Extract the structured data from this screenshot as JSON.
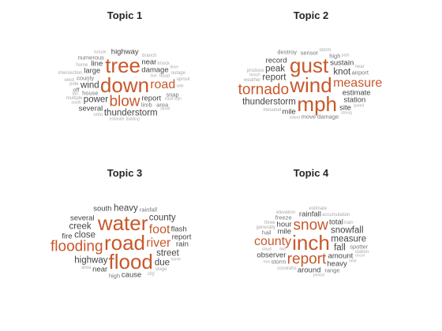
{
  "colors": {
    "title": "#262626",
    "highlight": "#c8582b",
    "dark": "#444444",
    "mid": "#777777",
    "light": "#aaaaaa"
  },
  "topics": [
    {
      "title": "Topic 1",
      "words": [
        {
          "t": "down",
          "tier": 1
        },
        {
          "t": "tree",
          "tier": 1
        },
        {
          "t": "blow",
          "tier": 2
        },
        {
          "t": "road",
          "tier": 3
        },
        {
          "t": "thunderstorm",
          "tier": 4
        },
        {
          "t": "wind",
          "tier": 4
        },
        {
          "t": "power",
          "tier": 4
        },
        {
          "t": "report",
          "tier": 5
        },
        {
          "t": "damage",
          "tier": 5
        },
        {
          "t": "large",
          "tier": 5
        },
        {
          "t": "near",
          "tier": 5
        },
        {
          "t": "line",
          "tier": 5
        },
        {
          "t": "several",
          "tier": 5
        },
        {
          "t": "highway",
          "tier": 5
        },
        {
          "t": "county",
          "tier": 6
        },
        {
          "t": "house",
          "tier": 6
        },
        {
          "t": "limb",
          "tier": 6
        },
        {
          "t": "snap",
          "tier": 6
        },
        {
          "t": "numerous",
          "tier": 6
        },
        {
          "t": "area",
          "tier": 6
        },
        {
          "t": "off",
          "tier": 6
        },
        {
          "t": "flood",
          "tier": 7
        },
        {
          "t": "multiple",
          "tier": 7
        },
        {
          "t": "roof",
          "tier": 7
        },
        {
          "t": "pole",
          "tier": 7
        },
        {
          "t": "knock",
          "tier": 7
        },
        {
          "t": "branch",
          "tier": 7
        },
        {
          "t": "intersection",
          "tier": 7
        },
        {
          "t": "home",
          "tier": 7
        },
        {
          "t": "outage",
          "tier": 7
        },
        {
          "t": "west",
          "tier": 7
        },
        {
          "t": "uproot",
          "tier": 7
        },
        {
          "t": "onto",
          "tier": 7
        },
        {
          "t": "due",
          "tier": 8
        },
        {
          "t": "two",
          "tier": 8
        },
        {
          "t": "side",
          "tier": 8
        },
        {
          "t": "street",
          "tier": 8
        },
        {
          "t": "building",
          "tier": 8
        },
        {
          "t": "south",
          "tier": 8
        },
        {
          "t": "include",
          "tier": 8
        },
        {
          "t": "estimate",
          "tier": 8
        },
        {
          "t": "sign",
          "tier": 8
        },
        {
          "t": "drive",
          "tier": 8
        }
      ]
    },
    {
      "title": "Topic 2",
      "words": [
        {
          "t": "wind",
          "tier": 1
        },
        {
          "t": "gust",
          "tier": 1
        },
        {
          "t": "mph",
          "tier": 1
        },
        {
          "t": "tornado",
          "tier": 2
        },
        {
          "t": "measure",
          "tier": 3
        },
        {
          "t": "thunderstorm",
          "tier": 4
        },
        {
          "t": "report",
          "tier": 4
        },
        {
          "t": "knot",
          "tier": 4
        },
        {
          "t": "peak",
          "tier": 4
        },
        {
          "t": "estimate",
          "tier": 5
        },
        {
          "t": "sustain",
          "tier": 5
        },
        {
          "t": "station",
          "tier": 5
        },
        {
          "t": "record",
          "tier": 5
        },
        {
          "t": "mile",
          "tier": 5
        },
        {
          "t": "site",
          "tier": 5
        },
        {
          "t": "sensor",
          "tier": 6
        },
        {
          "t": "airport",
          "tier": 6
        },
        {
          "t": "move",
          "tier": 6
        },
        {
          "t": "damage",
          "tier": 6
        },
        {
          "t": "high",
          "tier": 6
        },
        {
          "t": "destroy",
          "tier": 6
        },
        {
          "t": "mesonet",
          "tier": 7
        },
        {
          "t": "weather",
          "tier": 7
        },
        {
          "t": "produce",
          "tier": 7
        },
        {
          "t": "observe",
          "tier": 7
        },
        {
          "t": "storm",
          "tier": 7
        },
        {
          "t": "maximum",
          "tier": 7
        },
        {
          "t": "measured",
          "tier": 7
        },
        {
          "t": "near",
          "tier": 7
        },
        {
          "t": "island",
          "tier": 8
        },
        {
          "t": "beach",
          "tier": 8
        },
        {
          "t": "strong",
          "tier": 8
        },
        {
          "t": "approximately",
          "tier": 8
        },
        {
          "t": "speed",
          "tier": 8
        },
        {
          "t": "path",
          "tier": 8
        },
        {
          "t": "touchdown",
          "tier": 8
        }
      ]
    },
    {
      "title": "Topic 3",
      "words": [
        {
          "t": "road",
          "tier": 1
        },
        {
          "t": "water",
          "tier": 1
        },
        {
          "t": "flood",
          "tier": 1
        },
        {
          "t": "flooding",
          "tier": 2
        },
        {
          "t": "river",
          "tier": 3
        },
        {
          "t": "foot",
          "tier": 3
        },
        {
          "t": "highway",
          "tier": 4
        },
        {
          "t": "close",
          "tier": 4
        },
        {
          "t": "street",
          "tier": 4
        },
        {
          "t": "creek",
          "tier": 4
        },
        {
          "t": "county",
          "tier": 4
        },
        {
          "t": "heavy",
          "tier": 4
        },
        {
          "t": "due",
          "tier": 4
        },
        {
          "t": "near",
          "tier": 5
        },
        {
          "t": "cause",
          "tier": 5
        },
        {
          "t": "several",
          "tier": 5
        },
        {
          "t": "report",
          "tier": 5
        },
        {
          "t": "rain",
          "tier": 5
        },
        {
          "t": "flash",
          "tier": 5
        },
        {
          "t": "fire",
          "tier": 5
        },
        {
          "t": "south",
          "tier": 5
        },
        {
          "t": "rescue",
          "tier": 6
        },
        {
          "t": "high",
          "tier": 6
        },
        {
          "t": "cross",
          "tier": 6
        },
        {
          "t": "rainfall",
          "tier": 6
        },
        {
          "t": "produce",
          "tier": 6
        },
        {
          "t": "stage",
          "tier": 7
        },
        {
          "t": "intersection",
          "tier": 7
        },
        {
          "t": "area",
          "tier": 7
        },
        {
          "t": "numerous",
          "tier": 7
        },
        {
          "t": "city",
          "tier": 7
        },
        {
          "t": "vehicle",
          "tier": 7
        },
        {
          "t": "closed",
          "tier": 7
        },
        {
          "t": "lightning",
          "tier": 7
        },
        {
          "t": "include",
          "tier": 8
        },
        {
          "t": "portion",
          "tier": 8
        },
        {
          "t": "home",
          "tier": 8
        },
        {
          "t": "two",
          "tier": 8
        },
        {
          "t": "department",
          "tier": 8
        }
      ]
    },
    {
      "title": "Topic 4",
      "words": [
        {
          "t": "inch",
          "tier": 1
        },
        {
          "t": "report",
          "tier": 2
        },
        {
          "t": "snow",
          "tier": 2
        },
        {
          "t": "county",
          "tier": 3
        },
        {
          "t": "measure",
          "tier": 4
        },
        {
          "t": "snowfall",
          "tier": 4
        },
        {
          "t": "fall",
          "tier": 4
        },
        {
          "t": "mile",
          "tier": 5
        },
        {
          "t": "amount",
          "tier": 5
        },
        {
          "t": "observer",
          "tier": 5
        },
        {
          "t": "hour",
          "tier": 5
        },
        {
          "t": "total",
          "tier": 5
        },
        {
          "t": "rainfall",
          "tier": 5
        },
        {
          "t": "heavy",
          "tier": 5
        },
        {
          "t": "around",
          "tier": 5
        },
        {
          "t": "spotter",
          "tier": 6
        },
        {
          "t": "storm",
          "tier": 6
        },
        {
          "t": "freeze",
          "tier": 6
        },
        {
          "t": "hail",
          "tier": 6
        },
        {
          "t": "range",
          "tier": 6
        },
        {
          "t": "accumulation",
          "tier": 7
        },
        {
          "t": "generally",
          "tier": 7
        },
        {
          "t": "cocorahs",
          "tier": 7
        },
        {
          "t": "station",
          "tier": 7
        },
        {
          "t": "train",
          "tier": 7
        },
        {
          "t": "three",
          "tier": 7
        },
        {
          "t": "elevation",
          "tier": 7
        },
        {
          "t": "estimate",
          "tier": 7
        },
        {
          "t": "two",
          "tier": 8
        },
        {
          "t": "cloud",
          "tier": 8
        },
        {
          "t": "near",
          "tier": 8
        },
        {
          "t": "period",
          "tier": 8
        },
        {
          "t": "occur",
          "tier": 8
        },
        {
          "t": "nws",
          "tier": 8
        }
      ]
    }
  ]
}
